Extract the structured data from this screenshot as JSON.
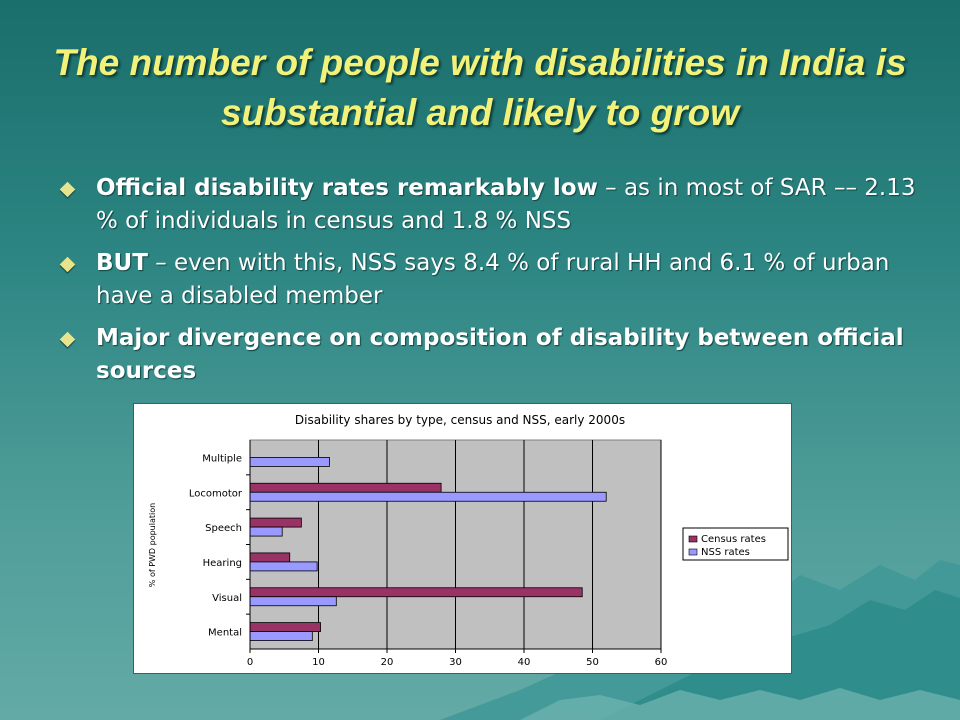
{
  "slide": {
    "title": "The number of people with disabilities in India is substantial and likely to grow",
    "bullets": [
      {
        "bold": "Official disability rates remarkably low",
        "text": " – as in most of SAR –– 2.13 % of individuals in census and 1.8 % NSS"
      },
      {
        "bold": "BUT",
        "text": " – even with this, NSS says 8.4 % of rural HH and 6.1 % of urban have a disabled member"
      },
      {
        "bold": "Major divergence on composition of disability between official sources",
        "text": ""
      }
    ]
  },
  "colors": {
    "title": "#f2f27a",
    "census": "#993366",
    "nss": "#9999ff",
    "plot_bg": "#c0c0c0"
  },
  "chart_data": {
    "type": "bar",
    "orientation": "horizontal",
    "title": "Disability shares by type, census and NSS, early 2000s",
    "ylabel": "% of PWD population",
    "xlabel": "",
    "categories": [
      "Multiple",
      "Locomotor",
      "Speech",
      "Hearing",
      "Visual",
      "Mental"
    ],
    "series": [
      {
        "name": "Census rates",
        "values": [
          0,
          27.9,
          7.5,
          5.8,
          48.5,
          10.3
        ]
      },
      {
        "name": "NSS rates",
        "values": [
          11.6,
          52.0,
          4.7,
          9.8,
          12.6,
          9.1
        ]
      }
    ],
    "xlim": [
      0,
      60
    ],
    "xticks": [
      "0",
      "10",
      "20",
      "30",
      "40",
      "50",
      "60"
    ],
    "grid": true,
    "legend_position": "right"
  }
}
